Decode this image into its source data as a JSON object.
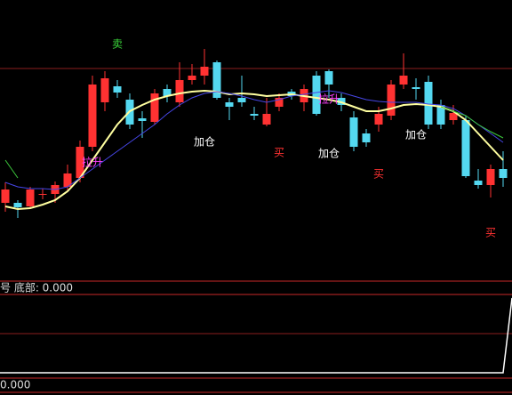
{
  "chart_data": {
    "type": "candlestick",
    "ylim": [
      0,
      300
    ],
    "up_color": "#ff3232",
    "down_color": "#54d8f0",
    "open": [
      72,
      72,
      68,
      82,
      82,
      90,
      100,
      135,
      185,
      203,
      188,
      167,
      163,
      200,
      185,
      210,
      215,
      230,
      185,
      190,
      172,
      160,
      180,
      197,
      185,
      215,
      220,
      190,
      168,
      150,
      160,
      170,
      205,
      202,
      208,
      182,
      165,
      165,
      97,
      92,
      110
    ],
    "high": [
      95,
      75,
      90,
      88,
      96,
      115,
      142,
      215,
      220,
      210,
      195,
      175,
      200,
      205,
      230,
      228,
      245,
      232,
      190,
      215,
      180,
      190,
      195,
      200,
      205,
      220,
      222,
      195,
      175,
      155,
      180,
      210,
      240,
      212,
      215,
      188,
      182,
      170,
      110,
      115,
      130
    ],
    "low": [
      62,
      55,
      65,
      76,
      72,
      85,
      95,
      130,
      175,
      190,
      155,
      145,
      160,
      185,
      180,
      205,
      205,
      188,
      165,
      180,
      165,
      158,
      175,
      188,
      175,
      170,
      190,
      175,
      130,
      135,
      152,
      165,
      200,
      188,
      155,
      155,
      160,
      100,
      88,
      78,
      90
    ],
    "close": [
      87,
      67,
      87,
      82,
      92,
      105,
      135,
      205,
      212,
      196,
      160,
      164,
      195,
      192,
      210,
      215,
      225,
      190,
      180,
      185,
      170,
      172,
      190,
      192,
      200,
      172,
      205,
      182,
      135,
      140,
      172,
      205,
      215,
      200,
      160,
      160,
      173,
      102,
      92,
      110,
      100
    ],
    "series": [
      {
        "name": "MA1",
        "color": "#ffffa0",
        "values": [
          68,
          65,
          66,
          70,
          75,
          85,
          100,
          120,
          140,
          160,
          175,
          182,
          188,
          192,
          195,
          197,
          198,
          197,
          194,
          195,
          194,
          192,
          193,
          194,
          192,
          190,
          188,
          185,
          180,
          175,
          175,
          178,
          182,
          183,
          182,
          180,
          175,
          165,
          150,
          135,
          120
        ]
      },
      {
        "name": "MA2",
        "color": "#4646e6",
        "values": [
          95,
          90,
          88,
          88,
          87,
          90,
          100,
          110,
          120,
          130,
          140,
          150,
          160,
          172,
          182,
          190,
          195,
          197,
          195,
          192,
          188,
          185,
          188,
          192,
          194,
          196,
          198,
          196,
          192,
          188,
          186,
          185,
          185,
          185,
          183,
          182,
          178,
          170,
          160,
          150,
          140
        ]
      },
      {
        "name": "MA3",
        "color": "#3cc83c",
        "values": [
          120,
          100,
          null,
          null,
          null,
          null,
          null,
          null,
          null,
          null,
          null,
          null,
          null,
          null,
          null,
          null,
          null,
          null,
          null,
          null,
          null,
          null,
          null,
          null,
          null,
          null,
          null,
          null,
          null,
          null,
          null,
          null,
          null,
          null,
          null,
          180,
          175,
          170,
          160,
          152,
          145
        ]
      }
    ],
    "annotations": [
      {
        "text": "卖",
        "index": 9,
        "value": 250,
        "color": "#3cdc3c"
      },
      {
        "text": "拉升",
        "index": 7,
        "value": 117,
        "color": "#ff40ff"
      },
      {
        "text": "加仓",
        "index": 16,
        "value": 140,
        "color": "#ffffff"
      },
      {
        "text": "买",
        "index": 22,
        "value": 128,
        "color": "#ff3232"
      },
      {
        "text": "加仓",
        "index": 26,
        "value": 127,
        "color": "#ffffff"
      },
      {
        "text": "拉升",
        "index": 26,
        "value": 188,
        "color": "#ff40ff"
      },
      {
        "text": "买",
        "index": 30,
        "value": 104,
        "color": "#ff3232"
      },
      {
        "text": "加仓",
        "index": 33,
        "value": 148,
        "color": "#ffffff"
      },
      {
        "text": "买",
        "index": 39,
        "value": 38,
        "color": "#ff3232"
      }
    ],
    "indicator_label": "号 底部: 0.000",
    "indicator_bottom_label": "0.000"
  }
}
